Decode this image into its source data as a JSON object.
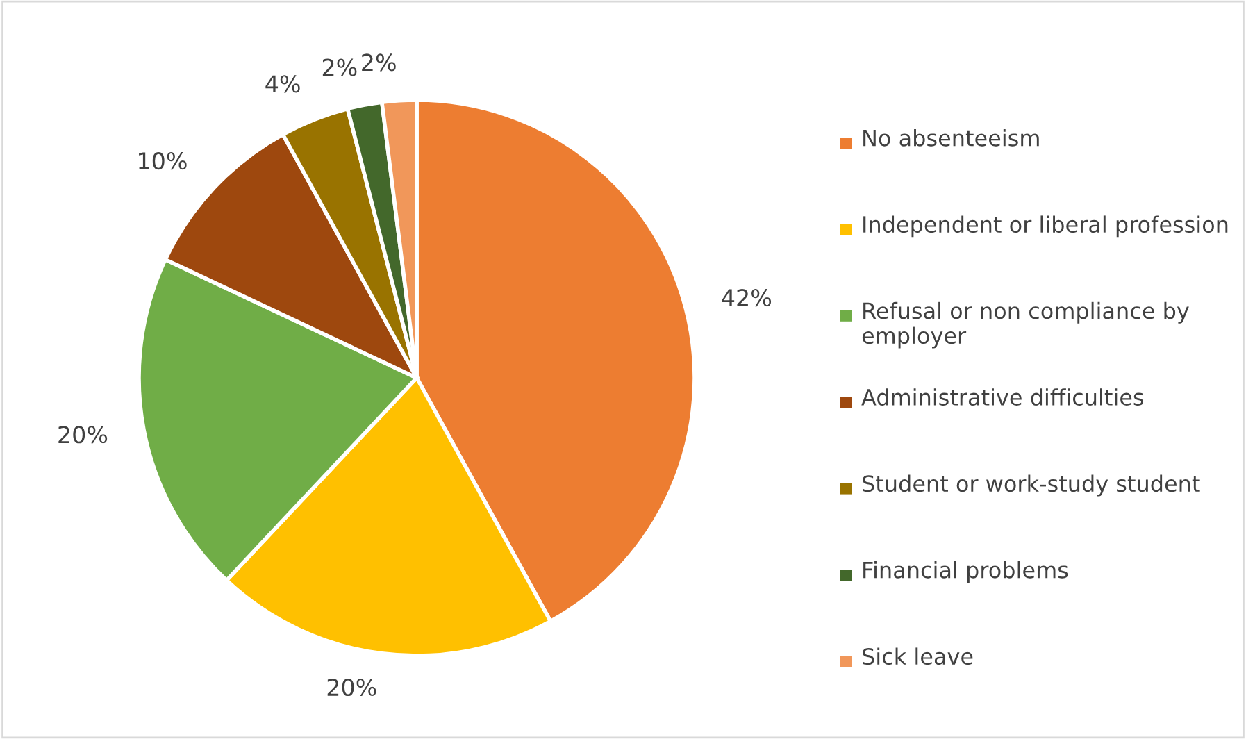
{
  "chart_data": {
    "type": "pie",
    "categories": [
      "No absenteeism",
      "Independent or liberal profession",
      "Refusal or non compliance by employer",
      "Administrative difficulties",
      "Student or work-study student",
      "Financial problems",
      "Sick leave"
    ],
    "values": [
      42,
      20,
      20,
      10,
      4,
      2,
      2
    ],
    "colors": [
      "#ed7d31",
      "#ffc000",
      "#70ad47",
      "#9e480e",
      "#997300",
      "#43682b",
      "#f1975a"
    ],
    "value_labels": [
      "42%",
      "20%",
      "20%",
      "10%",
      "4%",
      "2%",
      "2%"
    ],
    "legend": "right"
  }
}
